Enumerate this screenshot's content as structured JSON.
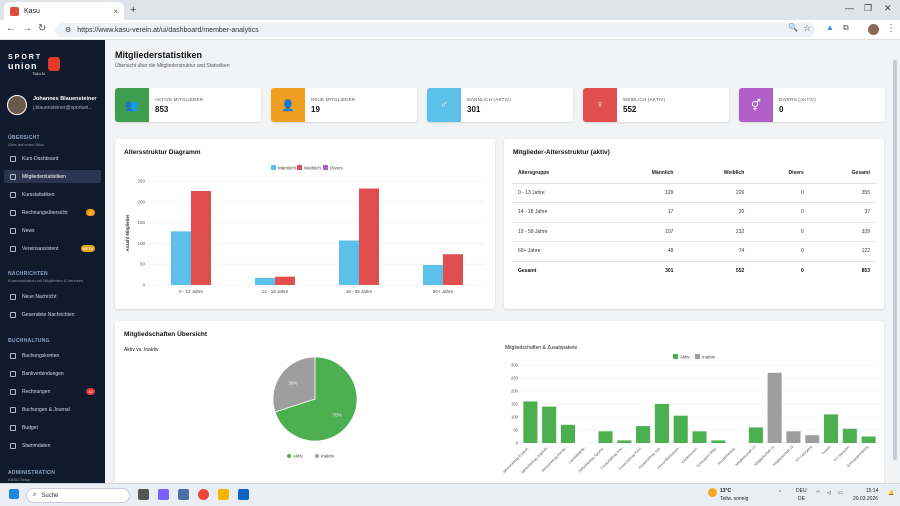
{
  "browser": {
    "tab_title": "Kasu",
    "new_tab": "+",
    "url": "https://www.kasu-verein.at/ui/dashboard/member-analytics"
  },
  "brand": {
    "line1": "SPORT",
    "line2": "union",
    "line3": "TULLN"
  },
  "user": {
    "name": "Johannes Blauensteiner",
    "email": "j.blauensteiner@sportuni..."
  },
  "sidebar": {
    "overview_title": "ÜBERSICHT",
    "overview_sub": "Alles auf einen Blick",
    "overview_items": [
      {
        "label": "Kurs-Dashboard"
      },
      {
        "label": "Mitgliederstatistiken",
        "active": true
      },
      {
        "label": "Kursstatistiken"
      },
      {
        "label": "Rechnungsübersicht",
        "badge": "6",
        "badge_color": "#f39c12"
      },
      {
        "label": "News"
      },
      {
        "label": "Vereinsassistent",
        "badge": "BETA",
        "badge_color": "#e8a317"
      }
    ],
    "news_title": "NACHRICHTEN",
    "news_sub": "Kommunikation mit Mitgliedern & Vereinen",
    "news_items": [
      {
        "label": "Neue Nachricht"
      },
      {
        "label": "Gesendete Nachrichten"
      }
    ],
    "book_title": "BUCHHALTUNG",
    "book_items": [
      {
        "label": "Buchungskonten"
      },
      {
        "label": "Bankverbindungen"
      },
      {
        "label": "Rechnungen",
        "badge": "32",
        "badge_color": "#e53935"
      },
      {
        "label": "Buchungen & Journal"
      },
      {
        "label": "Budget"
      },
      {
        "label": "Stammdaten"
      }
    ],
    "admin_title": "ADMINISTRATION",
    "admin_sub": "KASU Setup"
  },
  "page": {
    "title": "Mitgliederstatistiken",
    "subtitle": "Übersicht über die Mitgliederstruktur und Statistiken"
  },
  "stats": [
    {
      "label": "AKTIVE MITGLIEDER",
      "value": "853",
      "color": "#3f9e4d",
      "icon": "users-icon"
    },
    {
      "label": "NEUE MITGLIEDER",
      "value": "19",
      "color": "#f0a020",
      "icon": "user-plus-icon"
    },
    {
      "label": "MÄNNLICH (AKTIV)",
      "value": "301",
      "color": "#5bc0ea",
      "icon": "male-icon"
    },
    {
      "label": "WEIBLICH (AKTIV)",
      "value": "552",
      "color": "#e04e4e",
      "icon": "female-icon"
    },
    {
      "label": "DIVERS (AKTIV)",
      "value": "0",
      "color": "#b05ec8",
      "icon": "diverse-icon"
    }
  ],
  "age_chart": {
    "title": "Altersstruktur Diagramm",
    "legend": [
      "Männlich",
      "Weiblich",
      "Divers"
    ],
    "ylabel": "Anzahl Mitglieder"
  },
  "age_table": {
    "title": "Mitglieder-Altersstruktur (aktiv)",
    "headers": [
      "Altersgruppe",
      "Männlich",
      "Weiblich",
      "Divers",
      "Gesamt"
    ],
    "rows": [
      [
        "0 - 13 Jahre",
        "129",
        "226",
        "0",
        "355"
      ],
      [
        "14 - 18 Jahre",
        "17",
        "20",
        "0",
        "37"
      ],
      [
        "19 - 59 Jahre",
        "107",
        "232",
        "0",
        "339"
      ],
      [
        "60+ Jahre",
        "48",
        "74",
        "0",
        "122"
      ],
      [
        "Gesamt",
        "301",
        "552",
        "0",
        "853"
      ]
    ]
  },
  "membership": {
    "title": "Mitgliedschaften Übersicht",
    "pie_title": "Aktiv vs. Inaktiv",
    "pie_legend": [
      "Aktiv",
      "Inaktiv"
    ],
    "bar_title": "Mitgliedschaften & Zusatzpakete",
    "bar_legend": [
      "Aktiv",
      "Inaktiv"
    ]
  },
  "chart_data": [
    {
      "type": "bar",
      "title": "",
      "categories": [
        "0 - 13 Jahre",
        "14 - 18 Jahre",
        "19 - 59 Jahre",
        "60+ Jahre"
      ],
      "series": [
        {
          "name": "Männlich",
          "values": [
            129,
            17,
            107,
            48
          ],
          "color": "#5bc0ea"
        },
        {
          "name": "Weiblich",
          "values": [
            226,
            20,
            232,
            74
          ],
          "color": "#e04e4e"
        },
        {
          "name": "Divers",
          "values": [
            0,
            0,
            0,
            0
          ],
          "color": "#b05ec8"
        }
      ],
      "ylabel": "Anzahl Mitglieder",
      "ylim": [
        0,
        250
      ],
      "yticks": [
        0,
        50,
        100,
        150,
        200,
        250
      ],
      "legend_position": "top"
    },
    {
      "type": "pie",
      "categories": [
        "Aktiv",
        "Inaktiv"
      ],
      "values": [
        70,
        30
      ],
      "labels": [
        "70%",
        "30%"
      ],
      "colors": [
        "#4caf50",
        "#9e9e9e"
      ],
      "legend_position": "bottom"
    },
    {
      "type": "bar",
      "categories": [
        "Jahresbeitrag Erwach...",
        "Jahresbeitrag Jugendl...",
        "Jahresbeitrag Kinder...",
        "Leichtathletik...",
        "Selbstbeitrag Sportst...",
        "Zusatzbeitrag Erw...",
        "Zusatzbeitrag Kind...",
        "Zusatzbeitrag Jug...",
        "Gesundheitssport...",
        "Kinderturnen...",
        "Schnupper-Mitgl...",
        "Sonderbeitrag...",
        "Mitgliedschaft 13",
        "Mitgliedschaft 14",
        "Mitgliedschaft 15",
        "FIT-Lehrgang",
        "Turnen",
        "FIT-Senioren",
        "Schnuppertraining"
      ],
      "series": [
        {
          "name": "Aktiv",
          "values": [
            160,
            140,
            70,
            0,
            45,
            10,
            65,
            150,
            105,
            45,
            10,
            0,
            60,
            0,
            0,
            0,
            110,
            55,
            25
          ],
          "color": "#4caf50"
        },
        {
          "name": "Inaktiv",
          "values": [
            0,
            0,
            0,
            0,
            0,
            0,
            0,
            0,
            0,
            0,
            0,
            0,
            0,
            270,
            45,
            30,
            10,
            50,
            0
          ],
          "color": "#9e9e9e"
        }
      ],
      "ylim": [
        0,
        300
      ],
      "yticks": [
        0,
        50,
        100,
        150,
        200,
        250,
        300
      ],
      "legend_position": "top"
    }
  ],
  "taskbar": {
    "search": "Suche",
    "temp": "13°C",
    "weather": "Teilw. sonnig",
    "lang1": "DEU",
    "lang2": "DE",
    "time": "15:14",
    "date": "20.03.2026"
  }
}
